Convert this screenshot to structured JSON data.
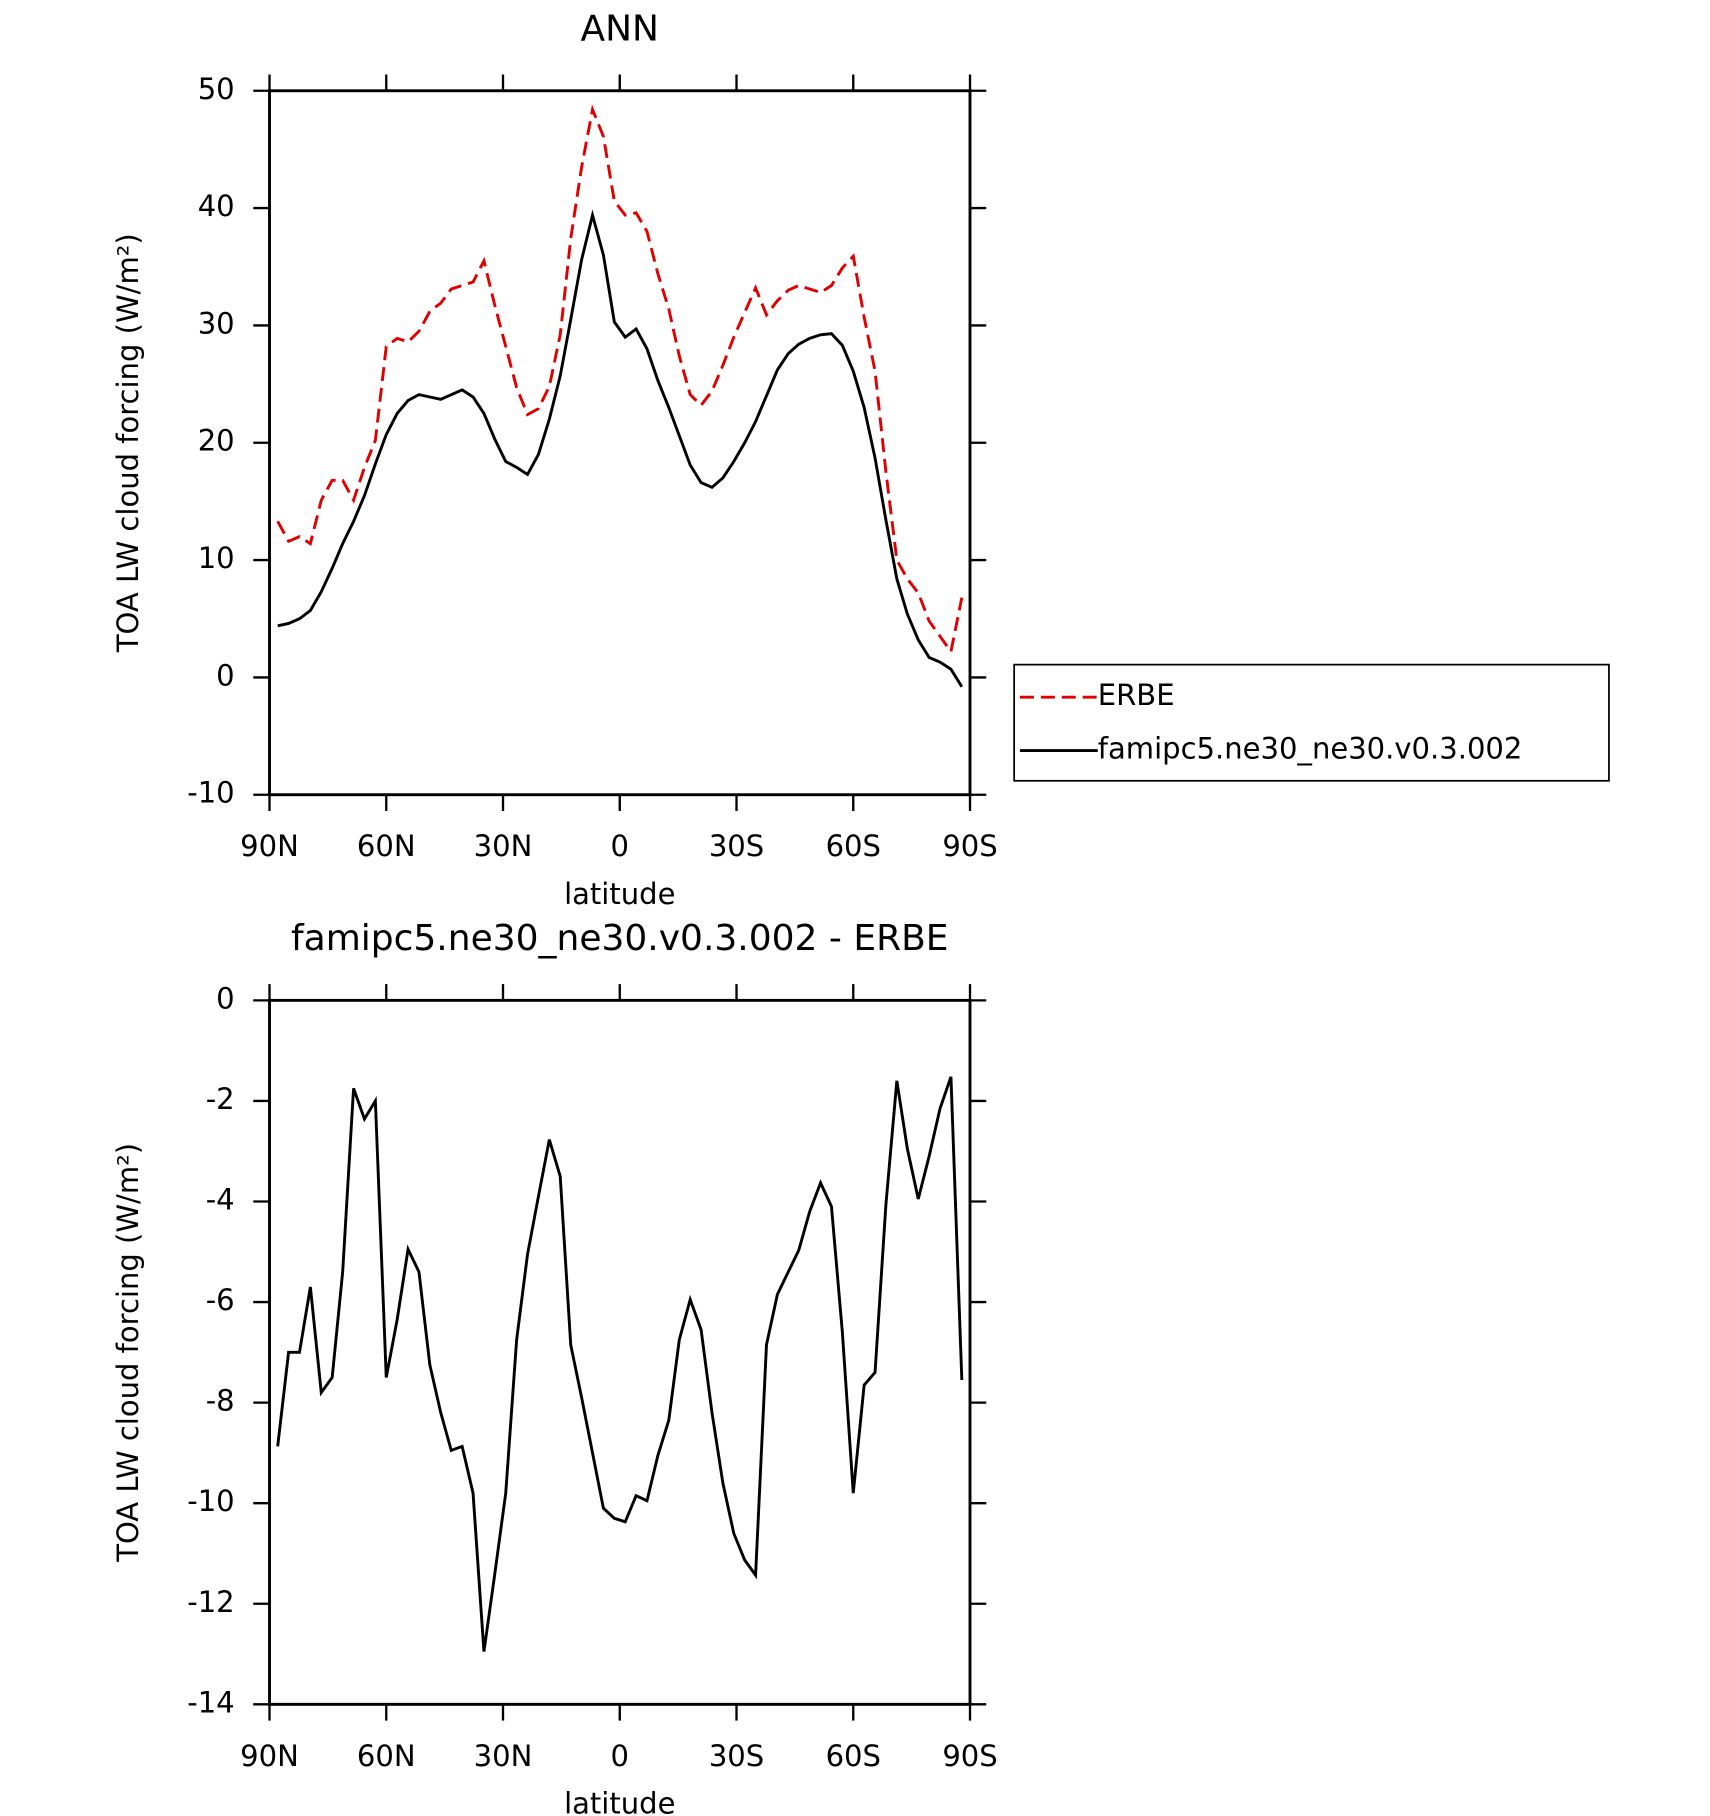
{
  "chart_data": [
    {
      "type": "line",
      "title": "ANN",
      "x_label": "latitude",
      "y_label": "TOA LW cloud forcing (W/m²)",
      "x": [
        87.9,
        85.1,
        82.3,
        79.5,
        76.7,
        73.9,
        71.2,
        68.4,
        65.6,
        62.8,
        60.0,
        57.2,
        54.4,
        51.6,
        48.8,
        46.0,
        43.3,
        40.5,
        37.7,
        34.9,
        32.1,
        29.3,
        26.5,
        23.7,
        20.9,
        18.1,
        15.3,
        12.6,
        9.8,
        7.0,
        4.2,
        1.4,
        -1.4,
        -4.2,
        -7.0,
        -9.8,
        -12.6,
        -15.3,
        -18.1,
        -20.9,
        -23.7,
        -26.5,
        -29.3,
        -32.1,
        -34.9,
        -37.7,
        -40.5,
        -43.3,
        -46.0,
        -48.8,
        -51.6,
        -54.4,
        -57.2,
        -60.0,
        -62.8,
        -65.6,
        -68.4,
        -71.2,
        -73.9,
        -76.7,
        -79.5,
        -82.3,
        -85.1,
        -87.9
      ],
      "series": [
        {
          "name": "ERBE",
          "color": "#e00000",
          "line_style": "dashed",
          "values": [
            13.3,
            11.6,
            12.0,
            11.4,
            15.1,
            16.8,
            16.8,
            15.1,
            17.9,
            20.2,
            28.2,
            28.9,
            28.6,
            29.5,
            31.2,
            31.9,
            33.1,
            33.4,
            33.7,
            35.5,
            31.7,
            28.2,
            24.7,
            22.4,
            22.9,
            24.8,
            29.2,
            37.4,
            43.5,
            48.4,
            46.1,
            40.6,
            39.4,
            39.6,
            38.0,
            34.4,
            31.4,
            27.4,
            24.1,
            23.2,
            24.4,
            26.6,
            29.0,
            31.1,
            33.2,
            30.9,
            32.1,
            33.0,
            33.4,
            33.1,
            32.8,
            33.4,
            34.9,
            35.9,
            30.7,
            26.1,
            17.5,
            10.0,
            8.4,
            7.2,
            4.8,
            3.5,
            2.2,
            6.8
          ]
        },
        {
          "name": "famipc5.ne30_ne30.v0.3.002",
          "color": "#000000",
          "line_style": "solid",
          "values": [
            4.4,
            4.6,
            5.0,
            5.7,
            7.3,
            9.3,
            11.4,
            13.3,
            15.5,
            18.2,
            20.7,
            22.5,
            23.6,
            24.1,
            23.9,
            23.7,
            24.1,
            24.5,
            23.9,
            22.5,
            20.3,
            18.4,
            17.9,
            17.3,
            19.0,
            22.0,
            25.7,
            30.5,
            35.6,
            39.4,
            36.0,
            30.3,
            29.0,
            29.7,
            28.0,
            25.3,
            23.0,
            20.6,
            18.1,
            16.6,
            16.2,
            17.0,
            18.4,
            20.0,
            21.8,
            24.0,
            26.2,
            27.6,
            28.4,
            28.9,
            29.2,
            29.3,
            28.3,
            26.1,
            23.0,
            18.7,
            13.4,
            8.4,
            5.4,
            3.2,
            1.7,
            1.3,
            0.7,
            -0.8
          ]
        }
      ],
      "xlim": [
        90,
        -90
      ],
      "xticks": [
        {
          "value": 90,
          "label": "90N"
        },
        {
          "value": 60,
          "label": "60N"
        },
        {
          "value": 30,
          "label": "30N"
        },
        0,
        {
          "value": -30,
          "label": "30S"
        },
        {
          "value": -60,
          "label": "60S"
        },
        {
          "value": -90,
          "label": "90S"
        }
      ],
      "ylim": [
        -10,
        50
      ],
      "yticks": [
        -10,
        0,
        10,
        20,
        30,
        40,
        50
      ],
      "legend": "right"
    },
    {
      "type": "line",
      "title": "famipc5.ne30_ne30.v0.3.002 - ERBE",
      "x_label": "latitude",
      "y_label": "TOA LW cloud forcing (W/m²)",
      "x": [
        87.9,
        85.1,
        82.3,
        79.5,
        76.7,
        73.9,
        71.2,
        68.4,
        65.6,
        62.8,
        60.0,
        57.2,
        54.4,
        51.6,
        48.8,
        46.0,
        43.3,
        40.5,
        37.7,
        34.9,
        32.1,
        29.3,
        26.5,
        23.7,
        20.9,
        18.1,
        15.3,
        12.6,
        9.8,
        7.0,
        4.2,
        1.4,
        -1.4,
        -4.2,
        -7.0,
        -9.8,
        -12.6,
        -15.3,
        -18.1,
        -20.9,
        -23.7,
        -26.5,
        -29.3,
        -32.1,
        -34.9,
        -37.7,
        -40.5,
        -43.3,
        -46.0,
        -48.8,
        -51.6,
        -54.4,
        -57.2,
        -60.0,
        -62.8,
        -65.6,
        -68.4,
        -71.2,
        -73.9,
        -76.7,
        -79.5,
        -82.3,
        -85.1,
        -87.9
      ],
      "color": "#000000",
      "values": [
        -8.87,
        -7.0,
        -7.0,
        -5.7,
        -7.8,
        -7.5,
        -5.4,
        -1.75,
        -2.36,
        -2.0,
        -7.5,
        -6.35,
        -4.95,
        -5.4,
        -7.25,
        -8.2,
        -8.95,
        -8.87,
        -9.8,
        -12.95,
        -11.4,
        -9.8,
        -6.75,
        -5.05,
        -3.9,
        -2.77,
        -3.5,
        -6.85,
        -7.9,
        -9.0,
        -10.1,
        -10.3,
        -10.37,
        -9.85,
        -9.95,
        -9.05,
        -8.35,
        -6.75,
        -5.95,
        -6.55,
        -8.2,
        -9.6,
        -10.6,
        -11.13,
        -11.43,
        -6.85,
        -5.85,
        -5.4,
        -4.97,
        -4.2,
        -3.63,
        -4.1,
        -6.6,
        -9.8,
        -7.65,
        -7.4,
        -4.05,
        -1.6,
        -2.95,
        -3.95,
        -3.1,
        -2.15,
        -1.52,
        -7.55
      ],
      "xlim": [
        90,
        -90
      ],
      "xticks": [
        {
          "value": 90,
          "label": "90N"
        },
        {
          "value": 60,
          "label": "60N"
        },
        {
          "value": 30,
          "label": "30N"
        },
        0,
        {
          "value": -30,
          "label": "30S"
        },
        {
          "value": -60,
          "label": "60S"
        },
        {
          "value": -90,
          "label": "90S"
        }
      ],
      "ylim": [
        -14,
        0
      ],
      "yticks": [
        -14,
        -12,
        -10,
        -8,
        -6,
        -4,
        -2,
        0
      ]
    }
  ]
}
